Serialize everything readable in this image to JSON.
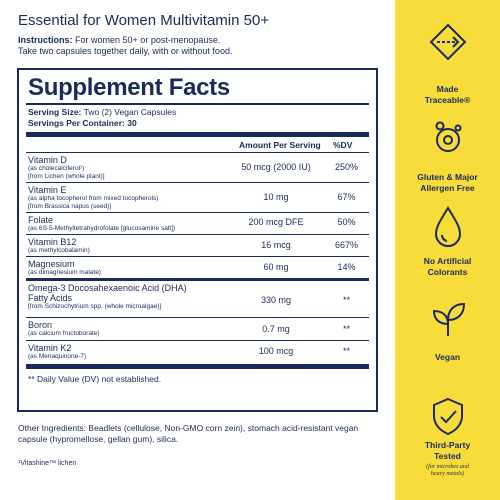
{
  "product_title": "Essential for Women Multivitamin 50+",
  "instructions": {
    "label": "Instructions:",
    "line1": "For women 50+ or post-menopause.",
    "line2": "Take two capsules together daily, with or without food."
  },
  "facts": {
    "title": "Supplement Facts",
    "serving_size_label": "Serving Size:",
    "serving_size_value": "Two (2) Vegan Capsules",
    "servings_label": "Servings Per Container:",
    "servings_value": "30",
    "col_amount": "Amount Per Serving",
    "col_dv": "%DV",
    "rows": [
      {
        "name": "Vitamin D",
        "sub1": "(as cholecalciferol¹)",
        "sub2": "[from Lichen (whole plant)]",
        "amount": "50 mcg (2000 IU)",
        "dv": "250%"
      },
      {
        "name": "Vitamin E",
        "sub1": "(as alpha tocopherol from mixed tocopherols)",
        "sub2": "[from Brassica napus (seed)]",
        "amount": "10 mg",
        "dv": "67%"
      },
      {
        "name": "Folate",
        "sub1": "(as 6S-5-Methyltetrahydrofolate [glucosamine salt])",
        "sub2": "",
        "amount": "200 mcg DFE",
        "dv": "50%"
      },
      {
        "name": "Vitamin B12",
        "sub1": "(as methylcobalamin)",
        "sub2": "",
        "amount": "16 mcg",
        "dv": "667%"
      },
      {
        "name": "Magnesium",
        "sub1": "(as dimagnesium malate)",
        "sub2": "",
        "amount": "60 mg",
        "dv": "14%"
      },
      {
        "name": "Omega-3 Docosahexaenoic Acid (DHA)",
        "name2": "Fatty Acids",
        "sub1": "[from Schizochytrium spp. (whole microalgae)]",
        "sub2": "",
        "amount": "330 mg",
        "dv": "**"
      },
      {
        "name": "Boron",
        "sub1": "(as calcium fructoborate)",
        "sub2": "",
        "amount": "0.7 mg",
        "dv": "**"
      },
      {
        "name": "Vitamin K2",
        "sub1": "(as Menaquinone-7)",
        "sub2": "",
        "amount": "100 mcg",
        "dv": "**"
      }
    ],
    "footnote": "** Daily Value (DV) not established."
  },
  "other_ingredients": "Other Ingredients: Beadlets (cellulose, Non-GMO corn zein), stomach acid-resistant vegan capsule (hypromellose, gellan gum), silica.",
  "trademark_note": "¹Vitashine™ lichen",
  "badges": [
    {
      "icon": "traceable-arrow-icon",
      "label1": "Made",
      "label2": "Traceable®"
    },
    {
      "icon": "molecule-icon",
      "label1": "Gluten & Major",
      "label2": "Allergen Free"
    },
    {
      "icon": "droplet-icon",
      "label1": "No Artificial",
      "label2": "Colorants"
    },
    {
      "icon": "sprout-icon",
      "label1": "Vegan",
      "label2": ""
    },
    {
      "icon": "shield-check-icon",
      "label1": "Third-Party",
      "label2": "Tested",
      "note1": "(for microbes and",
      "note2": "heavy metals)"
    }
  ],
  "colors": {
    "navy": "#1b2a5c",
    "yellow": "#f8dc39",
    "white": "#ffffff"
  }
}
